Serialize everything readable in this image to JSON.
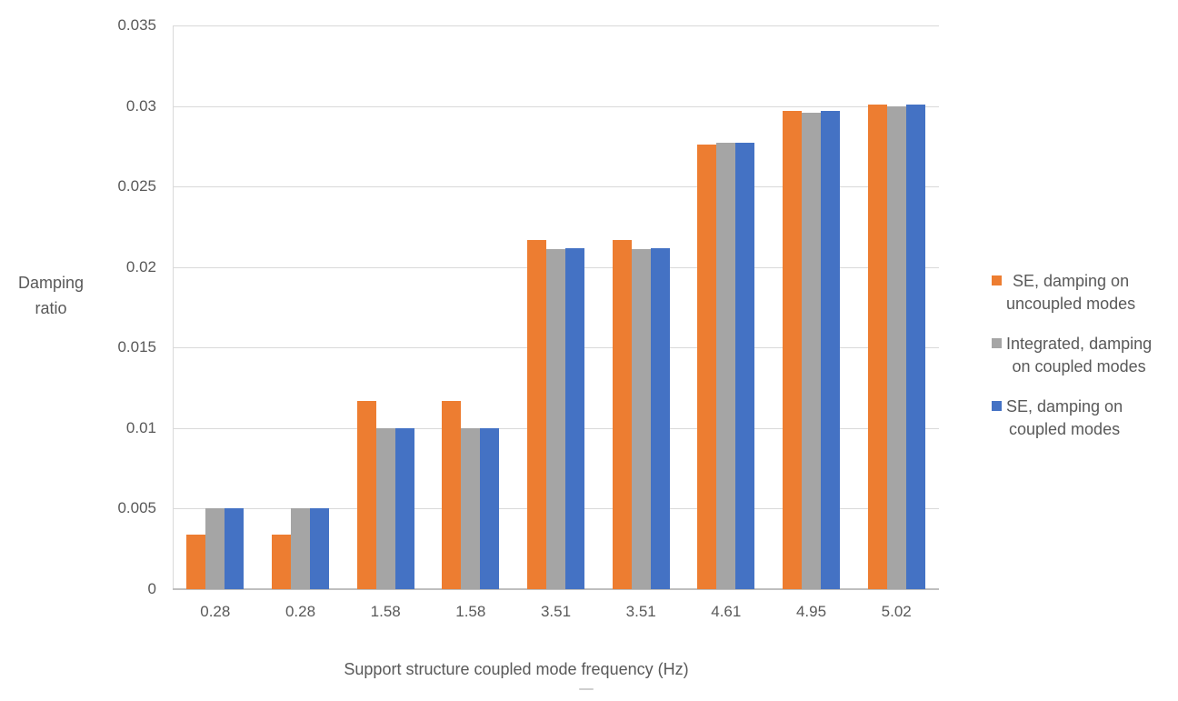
{
  "chart_data": {
    "type": "bar",
    "title": "",
    "xlabel": "Support structure coupled mode frequency (Hz)",
    "ylabel_lines": [
      "Damping",
      "ratio"
    ],
    "categories": [
      "0.28",
      "0.28",
      "1.58",
      "1.58",
      "3.51",
      "3.51",
      "4.61",
      "4.95",
      "5.02"
    ],
    "series": [
      {
        "name": "SE, damping on uncoupled modes",
        "label_lines": [
          "SE, damping on",
          "uncoupled modes"
        ],
        "color": "#ED7D31",
        "values": [
          0.0034,
          0.0034,
          0.0117,
          0.0117,
          0.0217,
          0.0217,
          0.0276,
          0.0297,
          0.0301
        ]
      },
      {
        "name": "Integrated, damping on coupled modes",
        "label_lines": [
          "Integrated, damping",
          "on coupled modes"
        ],
        "color": "#A5A5A5",
        "values": [
          0.005,
          0.005,
          0.01,
          0.01,
          0.0211,
          0.0211,
          0.0277,
          0.0296,
          0.03
        ]
      },
      {
        "name": "SE, damping on coupled modes",
        "label_lines": [
          "SE, damping on",
          "coupled modes"
        ],
        "color": "#4472C4",
        "values": [
          0.005,
          0.005,
          0.01,
          0.01,
          0.0212,
          0.0212,
          0.0277,
          0.0297,
          0.0301
        ]
      }
    ],
    "ylim": [
      0,
      0.035
    ],
    "ytick_step": 0.005,
    "yticks": [
      "0",
      "0.005",
      "0.01",
      "0.015",
      "0.02",
      "0.025",
      "0.03",
      "0.035"
    ],
    "grid": true,
    "legend_position": "right",
    "colors": {
      "gridline": "#D9D9D9",
      "axis_line": "#BFBFBF",
      "text": "#595959"
    }
  }
}
